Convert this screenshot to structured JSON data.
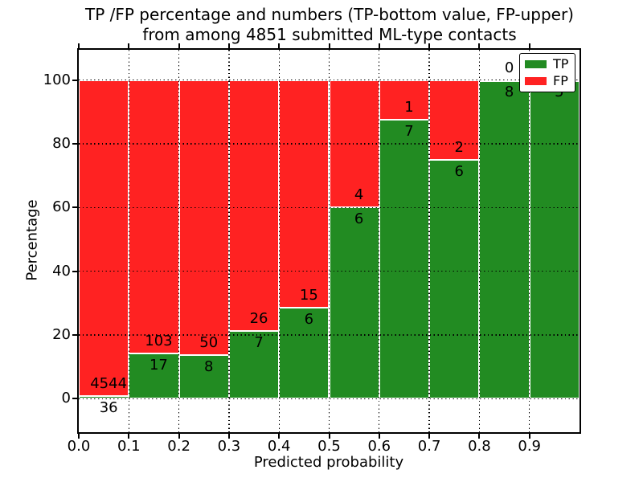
{
  "title": {
    "line1": "TP /FP percentage and numbers (TP-bottom value, FP-upper)",
    "line2": "from among 4851 submitted ML-type contacts"
  },
  "axes": {
    "xlabel": "Predicted probability",
    "ylabel": "Percentage",
    "x_tick_labels": [
      "0.0",
      "0.1",
      "0.2",
      "0.3",
      "0.4",
      "0.5",
      "0.6",
      "0.7",
      "0.8",
      "0.9"
    ],
    "y_tick_labels": [
      "0",
      "20",
      "40",
      "60",
      "80",
      "100"
    ]
  },
  "legend": {
    "items": [
      {
        "label": "TP",
        "color": "#228b22"
      },
      {
        "label": "FP",
        "color": "#ff2222"
      }
    ]
  },
  "chart_data": {
    "type": "bar",
    "stacked": true,
    "normalized": "each bin scaled so TP+FP = 100%",
    "title": "TP /FP percentage and numbers (TP-bottom value, FP-upper) from among 4851 submitted ML-type contacts",
    "xlabel": "Predicted probability",
    "ylabel": "Percentage",
    "categories": [
      "0.0-0.1",
      "0.1-0.2",
      "0.2-0.3",
      "0.3-0.4",
      "0.4-0.5",
      "0.5-0.6",
      "0.6-0.7",
      "0.7-0.8",
      "0.8-0.9",
      "0.9-1.0"
    ],
    "bin_edges": [
      0.0,
      0.1,
      0.2,
      0.3,
      0.4,
      0.5,
      0.6,
      0.7,
      0.8,
      0.9,
      1.0
    ],
    "series": [
      {
        "name": "TP",
        "color": "#228b22",
        "counts": [
          36,
          17,
          8,
          7,
          6,
          6,
          7,
          6,
          8,
          5
        ]
      },
      {
        "name": "FP",
        "color": "#ff2222",
        "counts": [
          4544,
          103,
          50,
          26,
          15,
          4,
          1,
          2,
          0,
          0
        ]
      }
    ],
    "tp_percent": [
      0.79,
      14.17,
      13.79,
      21.21,
      28.57,
      60.0,
      87.5,
      75.0,
      100.0,
      100.0
    ],
    "x_ticks": [
      0.0,
      0.1,
      0.2,
      0.3,
      0.4,
      0.5,
      0.6,
      0.7,
      0.8,
      0.9
    ],
    "y_ticks": [
      0,
      20,
      40,
      60,
      80,
      100
    ],
    "xlim": [
      0.0,
      1.0
    ],
    "ylim": [
      -10.5,
      109.5
    ],
    "grid": true,
    "legend_position": "upper right"
  }
}
